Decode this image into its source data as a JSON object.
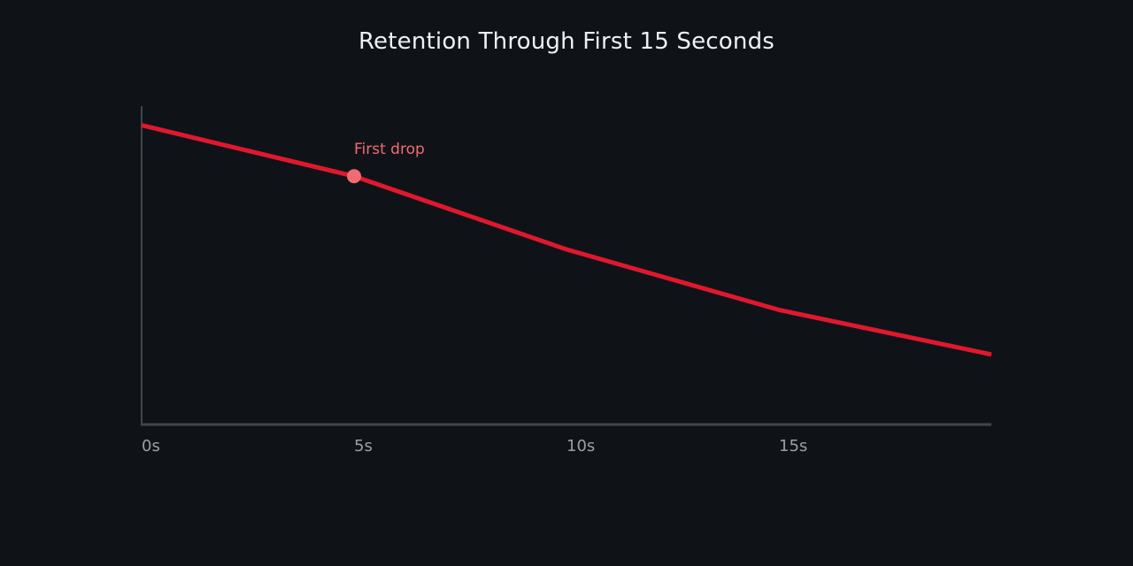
{
  "chart_data": {
    "type": "line",
    "title": "Retention Through First 15 Seconds",
    "xlabel": "",
    "ylabel": "",
    "x": [
      0,
      5,
      10,
      15,
      20
    ],
    "x_tick_values": [
      0,
      5,
      10,
      15
    ],
    "x_tick_labels": [
      "0s",
      "5s",
      "10s",
      "15s"
    ],
    "xlim": [
      0,
      20
    ],
    "ylim": [
      0,
      1
    ],
    "series": [
      {
        "values": [
          0.94,
          0.78,
          0.55,
          0.36,
          0.22
        ],
        "color": "#e0182d"
      }
    ],
    "annotations": [
      {
        "x": 5,
        "y": 0.78,
        "text": "First drop",
        "color": "#f36b72",
        "marker_color": "#f26b73"
      }
    ],
    "grid": false,
    "y_axis_tick_labels": false,
    "legend": "none",
    "colors": {
      "background": "#0f1318",
      "axis": "#41454c",
      "tick_text": "#9aa0a8",
      "title": "#eef0f3"
    }
  }
}
